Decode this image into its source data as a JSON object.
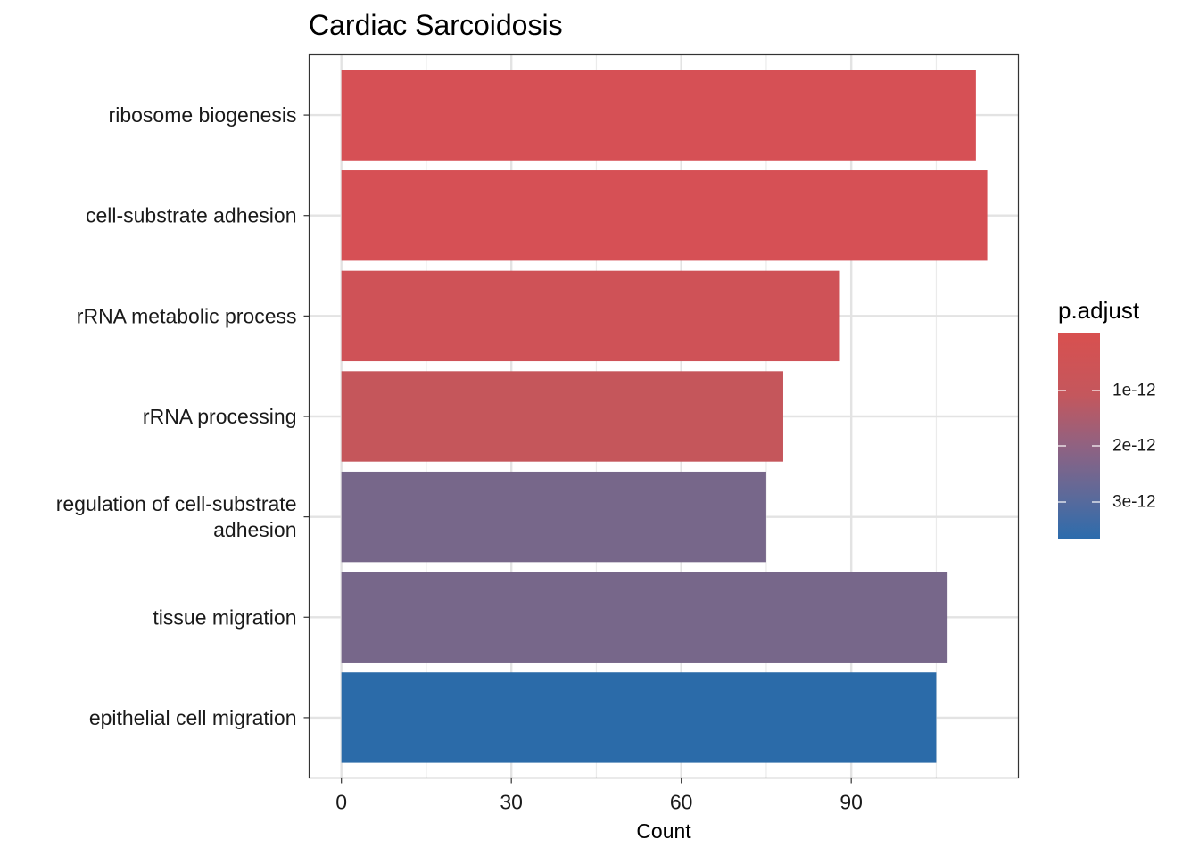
{
  "chart_data": {
    "type": "bar",
    "orientation": "horizontal",
    "title": "Cardiac Sarcoidosis",
    "xlabel": "Count",
    "ylabel": "",
    "categories": [
      "ribosome biogenesis",
      "cell-substrate adhesion",
      "rRNA metabolic process",
      "rRNA processing",
      "regulation of cell-substrate adhesion",
      "tissue migration",
      "epithelial cell migration"
    ],
    "category_label_lines": [
      [
        "ribosome biogenesis"
      ],
      [
        "cell-substrate adhesion"
      ],
      [
        "rRNA metabolic process"
      ],
      [
        "rRNA processing"
      ],
      [
        "regulation of cell-substrate",
        "adhesion"
      ],
      [
        "tissue migration"
      ],
      [
        "epithelial cell migration"
      ]
    ],
    "values": [
      112,
      114,
      88,
      78,
      75,
      107,
      105
    ],
    "colors": [
      "#d65055",
      "#d65055",
      "#cf5257",
      "#c5565b",
      "#77678a",
      "#77678a",
      "#2b6ba9"
    ],
    "xlim": [
      -5.7,
      119.5
    ],
    "xticks": [
      0,
      30,
      60,
      90
    ],
    "xtick_labels": [
      "0",
      "30",
      "60",
      "90"
    ],
    "grid": true,
    "legend": {
      "title": "p.adjust",
      "position": "right",
      "tick_labels": [
        "1e-12",
        "2e-12",
        "3e-12"
      ],
      "color_top": "#d8504f",
      "color_bottom": "#2b6cad"
    }
  }
}
